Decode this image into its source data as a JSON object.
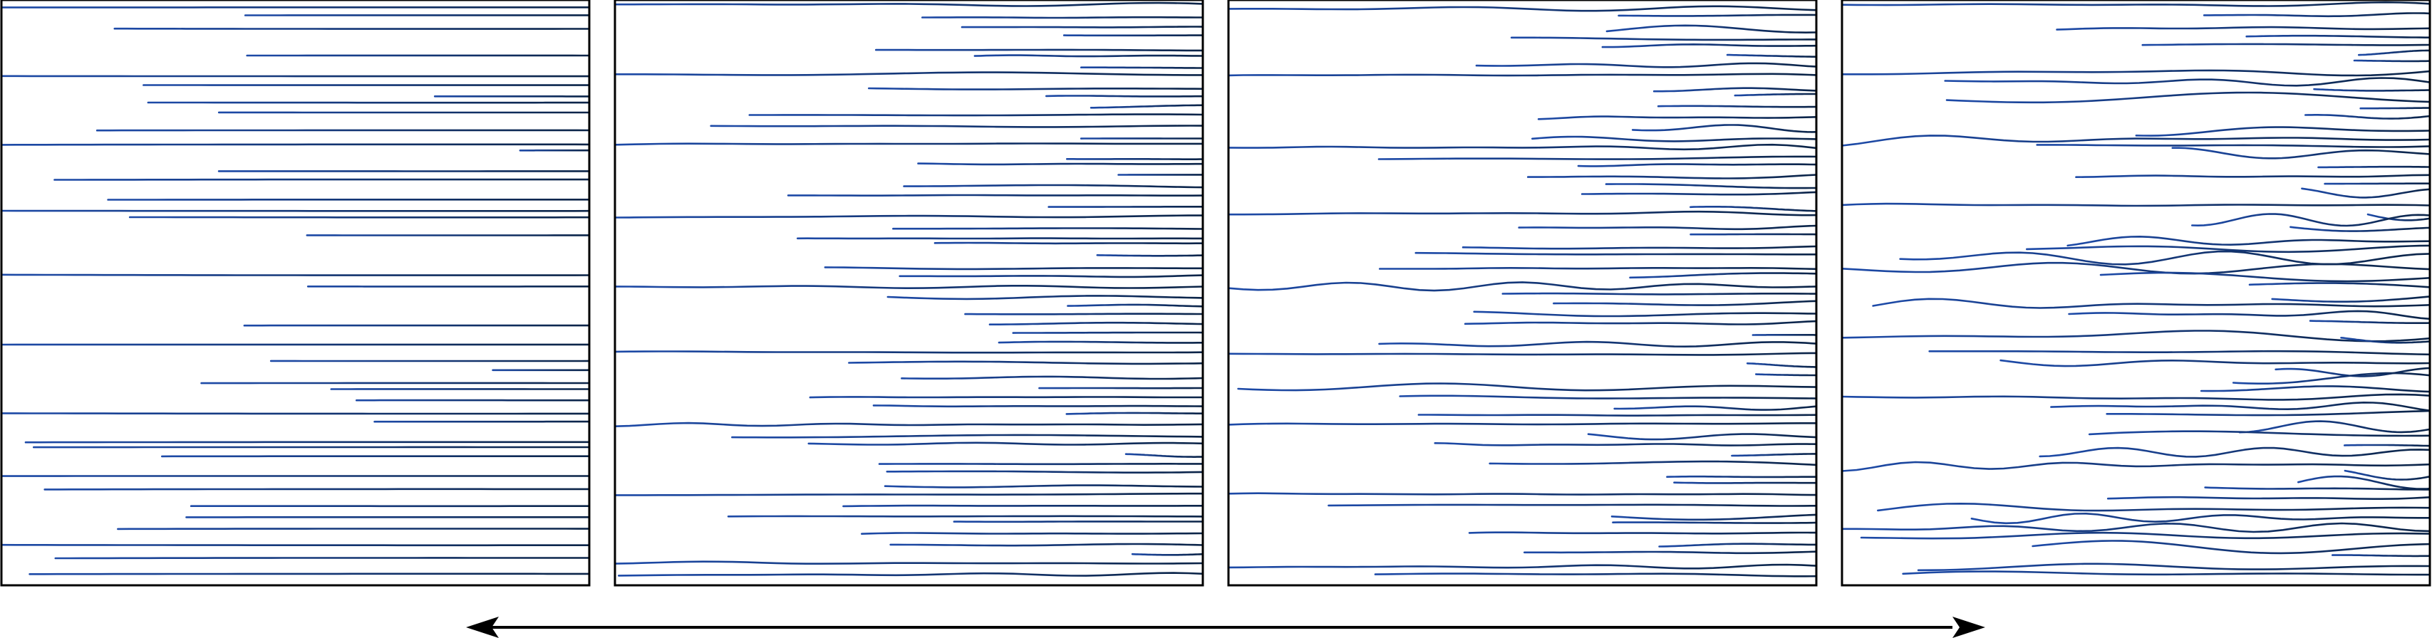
{
  "colors": {
    "line_start": "#1d4aa8",
    "line_end": "#0b2447",
    "frame": "#000000",
    "arrow": "#000000",
    "background": "#ffffff"
  },
  "panels": [
    {
      "name": "panel-1",
      "waviness": 0.0,
      "line_count": 60
    },
    {
      "name": "panel-2",
      "waviness": 0.25,
      "line_count": 58
    },
    {
      "name": "panel-3",
      "waviness": 0.6,
      "line_count": 58
    },
    {
      "name": "panel-4",
      "waviness": 1.0,
      "line_count": 62
    }
  ],
  "arrow": {
    "direction": "double-headed"
  }
}
